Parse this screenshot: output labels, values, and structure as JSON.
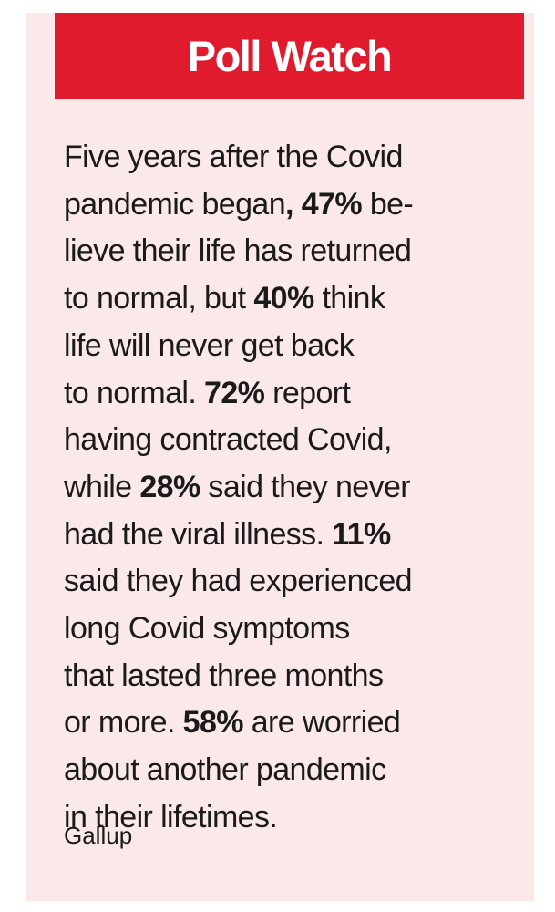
{
  "header": {
    "title": "Poll Watch"
  },
  "body": {
    "lines": [
      [
        {
          "t": "Five years after the Covid",
          "b": false
        }
      ],
      [
        {
          "t": "pandemic began",
          "b": false
        },
        {
          "t": ", 47%",
          "b": true
        },
        {
          "t": " be-",
          "b": false
        }
      ],
      [
        {
          "t": "lieve their life has returned",
          "b": false
        }
      ],
      [
        {
          "t": "to normal, but ",
          "b": false
        },
        {
          "t": "40%",
          "b": true
        },
        {
          "t": " think",
          "b": false
        }
      ],
      [
        {
          "t": "life will never get back",
          "b": false
        }
      ],
      [
        {
          "t": "to normal. ",
          "b": false
        },
        {
          "t": "72%",
          "b": true
        },
        {
          "t": " report",
          "b": false
        }
      ],
      [
        {
          "t": "having contracted Covid,",
          "b": false
        }
      ],
      [
        {
          "t": "while ",
          "b": false
        },
        {
          "t": "28%",
          "b": true
        },
        {
          "t": " said they never",
          "b": false
        }
      ],
      [
        {
          "t": "had the viral illness. ",
          "b": false
        },
        {
          "t": "11%",
          "b": true
        }
      ],
      [
        {
          "t": "said they had experienced",
          "b": false
        }
      ],
      [
        {
          "t": "long Covid symptoms",
          "b": false
        }
      ],
      [
        {
          "t": "that lasted three months",
          "b": false
        }
      ],
      [
        {
          "t": "or more. ",
          "b": false
        },
        {
          "t": "58%",
          "b": true
        },
        {
          "t": " are worried",
          "b": false
        }
      ],
      [
        {
          "t": "about another pandemic",
          "b": false
        }
      ],
      [
        {
          "t": "in their lifetimes.",
          "b": false
        }
      ]
    ]
  },
  "source": "Gallup",
  "colors": {
    "banner": "#e01b2e",
    "background": "#fbe9ea",
    "text": "#1a1a1a"
  }
}
